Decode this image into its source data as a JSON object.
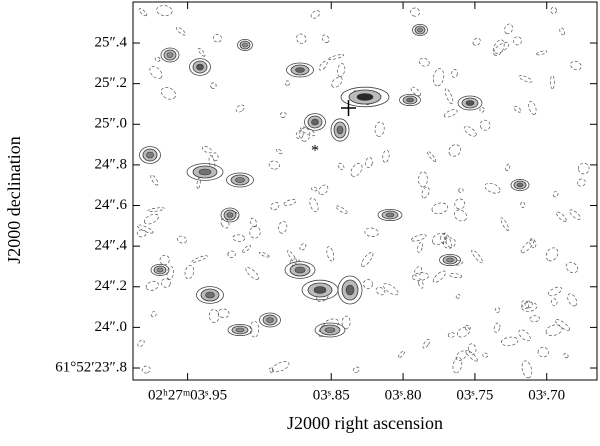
{
  "chart_data": {
    "type": "contour",
    "xlabel": "J2000 right ascension",
    "ylabel": "J2000 declination",
    "xlim": [
      3.988,
      3.665
    ],
    "ylim": [
      23.741,
      25.602
    ],
    "xticks": [
      {
        "value": 3.95,
        "label": "02ʰ27ᵐ03ˢ.95"
      },
      {
        "value": 3.85,
        "label": "03ˢ.85"
      },
      {
        "value": 3.8,
        "label": "03ˢ.80"
      },
      {
        "value": 3.75,
        "label": "03ˢ.75"
      },
      {
        "value": 3.7,
        "label": "03ˢ.70"
      }
    ],
    "yticks": [
      {
        "value": 23.8,
        "label": "61°52′23″.8"
      },
      {
        "value": 24.0,
        "label": "24″.0"
      },
      {
        "value": 24.2,
        "label": "24″.2"
      },
      {
        "value": 24.4,
        "label": "24″.4"
      },
      {
        "value": 24.6,
        "label": "24″.6"
      },
      {
        "value": 24.8,
        "label": "24″.8"
      },
      {
        "value": 25.0,
        "label": "25″.0"
      },
      {
        "value": 25.2,
        "label": "25″.2"
      },
      {
        "value": 25.4,
        "label": "25″.4"
      }
    ]
  }
}
